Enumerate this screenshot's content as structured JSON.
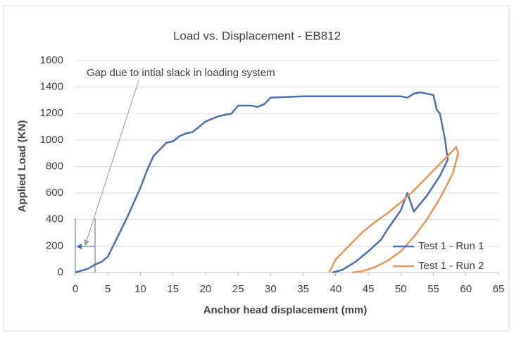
{
  "chart_data": {
    "type": "line",
    "title": "Load vs. Displacement - EB812",
    "xlabel": "Anchor head displacement (mm)",
    "ylabel": "Applied Load (KN)",
    "annotation": "Gap due to intial slack in loading system",
    "xlim": [
      0,
      65
    ],
    "xticks": [
      0,
      5,
      10,
      15,
      20,
      25,
      30,
      35,
      40,
      45,
      50,
      55,
      60,
      65
    ],
    "ylim": [
      0,
      1600
    ],
    "yticks": [
      0,
      200,
      400,
      600,
      800,
      1000,
      1200,
      1400,
      1600
    ],
    "grid": true,
    "legend": "lower right",
    "series": [
      {
        "name": "Test 1 - Run 1",
        "color": "#4a6fb5",
        "x": [
          0,
          2,
          3,
          4,
          5,
          6,
          7,
          8,
          9,
          10,
          11,
          12,
          13,
          14,
          15,
          16,
          17,
          18,
          19,
          20,
          21,
          22,
          23,
          24,
          25,
          27,
          28,
          29,
          30,
          35,
          40,
          45,
          50,
          51,
          52,
          53,
          55,
          55.5,
          56,
          56.8,
          57.2,
          56,
          54,
          52,
          51,
          50,
          49,
          48,
          47,
          45,
          43,
          41,
          39.5
        ],
        "values": [
          0,
          30,
          60,
          80,
          120,
          220,
          320,
          420,
          530,
          640,
          770,
          880,
          930,
          980,
          990,
          1030,
          1050,
          1060,
          1100,
          1140,
          1160,
          1180,
          1190,
          1200,
          1260,
          1260,
          1250,
          1270,
          1320,
          1330,
          1330,
          1330,
          1330,
          1320,
          1350,
          1360,
          1340,
          1230,
          1200,
          1000,
          850,
          730,
          580,
          460,
          600,
          470,
          400,
          330,
          250,
          160,
          80,
          20,
          0
        ]
      },
      {
        "name": "Test 1 - Run 2",
        "color": "#e8955a",
        "x": [
          39,
          40,
          42,
          44,
          46,
          48,
          50,
          52,
          54,
          56,
          58,
          58.5,
          58.8,
          58,
          56,
          54,
          52,
          50,
          48,
          46,
          44,
          42.5
        ],
        "values": [
          0,
          100,
          200,
          300,
          380,
          450,
          530,
          620,
          720,
          820,
          920,
          950,
          900,
          750,
          560,
          400,
          270,
          160,
          90,
          40,
          10,
          0
        ]
      }
    ]
  }
}
